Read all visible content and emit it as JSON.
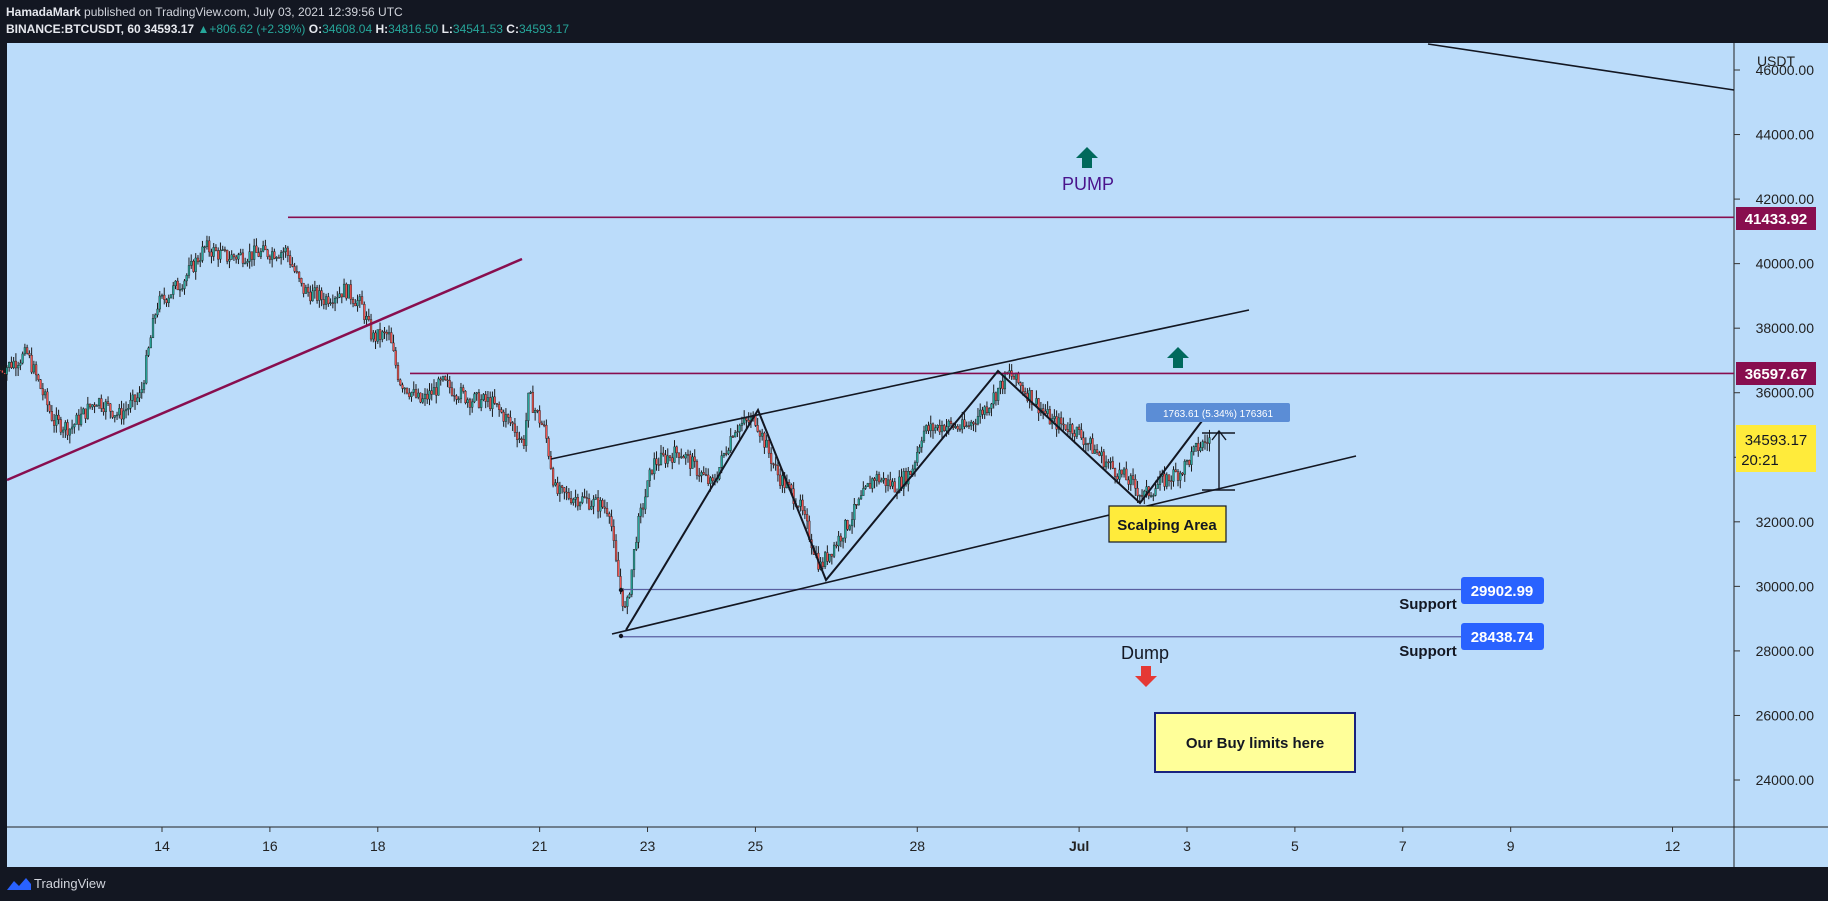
{
  "header": {
    "author": "HamadaMark",
    "published": "published on TradingView.com, July 03, 2021 12:39:56 UTC",
    "symbol": "BINANCE:BTCUSDT, 60",
    "last": "34593.17",
    "change": "▲+806.62 (+2.39%)",
    "o_label": "O:",
    "o_value": "34608.04",
    "h_label": "H:",
    "h_value": "34816.50",
    "l_label": "L:",
    "l_value": "34541.53",
    "c_label": "C:",
    "c_value": "34593.17"
  },
  "footer": {
    "brand": "TradingView",
    "logo_icon": "tradingview-logo-icon"
  },
  "colors": {
    "background": "#131722",
    "chart_bg": "#bbdcfa",
    "up": "#26a69a",
    "down": "#ef5350",
    "resistance": "#880e4f",
    "support_label": "#2962ff",
    "price_label": "#ffeb3b",
    "pump_arrow": "#00695c",
    "dump_arrow": "#e53935",
    "note_box": "#ffff99"
  },
  "chart_data": {
    "type": "candlestick",
    "currency_label": "USDT",
    "y_ticks": [
      24000,
      26000,
      28000,
      30000,
      32000,
      34000,
      36000,
      38000,
      40000,
      42000,
      44000,
      46000
    ],
    "y_tick_labels": [
      "24000.00",
      "26000.00",
      "28000.00",
      "30000.00",
      "32000.00",
      "34000.00",
      "36000.00",
      "38000.00",
      "40000.00",
      "42000.00",
      "44000.00",
      "46000.00"
    ],
    "x_ticks": [
      {
        "day": 14,
        "label": "14"
      },
      {
        "day": 16,
        "label": "16"
      },
      {
        "day": 18,
        "label": "18"
      },
      {
        "day": 21,
        "label": "21"
      },
      {
        "day": 23,
        "label": "23"
      },
      {
        "day": 25,
        "label": "25"
      },
      {
        "day": 28,
        "label": "28"
      },
      {
        "day": 31,
        "label": "Jul"
      },
      {
        "day": 33,
        "label": "3"
      },
      {
        "day": 35,
        "label": "5"
      },
      {
        "day": 37,
        "label": "7"
      },
      {
        "day": 39,
        "label": "9"
      },
      {
        "day": 42,
        "label": "12"
      }
    ],
    "path_daily": [
      [
        11.0,
        36700
      ],
      [
        11.5,
        37200
      ],
      [
        12.0,
        35100
      ],
      [
        12.3,
        34900
      ],
      [
        12.8,
        35800
      ],
      [
        13.2,
        35300
      ],
      [
        13.6,
        35900
      ],
      [
        13.9,
        38700
      ],
      [
        14.4,
        39500
      ],
      [
        14.8,
        40500
      ],
      [
        15.2,
        40200
      ],
      [
        15.7,
        40300
      ],
      [
        16.3,
        40400
      ],
      [
        16.6,
        39200
      ],
      [
        17.0,
        38900
      ],
      [
        17.4,
        39200
      ],
      [
        17.7,
        38700
      ],
      [
        17.9,
        37700
      ],
      [
        18.2,
        37800
      ],
      [
        18.4,
        36400
      ],
      [
        18.8,
        35700
      ],
      [
        19.2,
        36300
      ],
      [
        19.7,
        35800
      ],
      [
        20.1,
        35700
      ],
      [
        20.5,
        35000
      ],
      [
        20.7,
        34400
      ],
      [
        20.8,
        35900
      ],
      [
        21.1,
        34800
      ],
      [
        21.3,
        32900
      ],
      [
        21.8,
        32700
      ],
      [
        22.3,
        32400
      ],
      [
        22.4,
        30800
      ],
      [
        22.6,
        29100
      ],
      [
        22.8,
        31700
      ],
      [
        23.1,
        33800
      ],
      [
        23.6,
        34200
      ],
      [
        24.2,
        33100
      ],
      [
        24.6,
        34900
      ],
      [
        25.0,
        35200
      ],
      [
        25.4,
        33500
      ],
      [
        25.8,
        32600
      ],
      [
        26.2,
        30600
      ],
      [
        26.7,
        31900
      ],
      [
        27.2,
        33400
      ],
      [
        27.6,
        33100
      ],
      [
        27.9,
        33600
      ],
      [
        28.1,
        34800
      ],
      [
        28.5,
        35000
      ],
      [
        28.9,
        34900
      ],
      [
        29.3,
        35600
      ],
      [
        29.7,
        36600
      ],
      [
        30.1,
        35900
      ],
      [
        30.5,
        35100
      ],
      [
        30.9,
        34900
      ],
      [
        31.3,
        34200
      ],
      [
        31.6,
        33700
      ],
      [
        31.9,
        33300
      ],
      [
        32.2,
        32800
      ],
      [
        32.5,
        33200
      ],
      [
        32.9,
        33600
      ],
      [
        33.2,
        34300
      ],
      [
        33.45,
        34593.17
      ]
    ],
    "annotations": {
      "pump_text": "PUMP",
      "dump_text": "Dump",
      "scalping_text": "Scalping Area",
      "buy_limits_text": "Our Buy limits here",
      "support_text": "Support",
      "measure_text": "1763.61 (5.34%) 176361",
      "resistance_1": "41433.92",
      "resistance_2": "36597.67",
      "support_1": "29902.99",
      "support_2": "28438.74",
      "current_price": "34593.17",
      "countdown": "20:21"
    }
  }
}
